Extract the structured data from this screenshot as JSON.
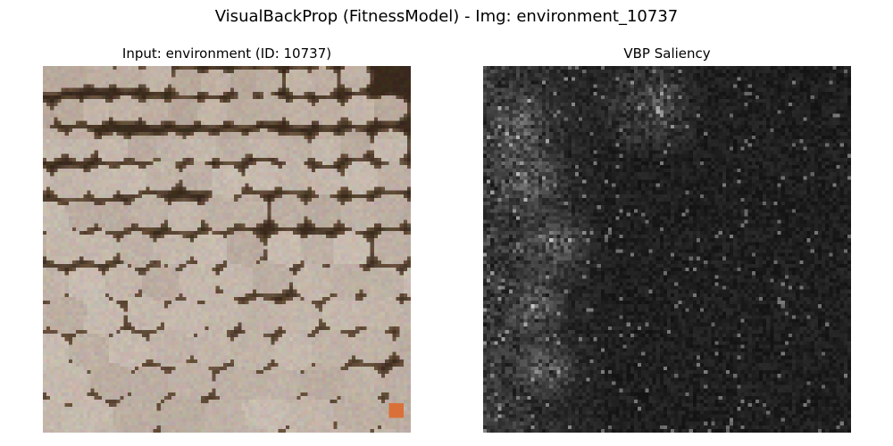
{
  "figure": {
    "title": "VisualBackProp (FitnessModel) - Img: environment_10737"
  },
  "panels": {
    "input": {
      "title": "Input: environment (ID: 10737)"
    },
    "saliency": {
      "title": "VBP Saliency"
    }
  },
  "colors": {
    "background": "#ffffff",
    "stone_base": "#b6a79b",
    "stone_light": "#cfc4b9",
    "gap_dark": "#3a2a1c",
    "gap_mid": "#6b5440",
    "orange_accent": "#d9703a",
    "saliency_bg": "#111111"
  }
}
